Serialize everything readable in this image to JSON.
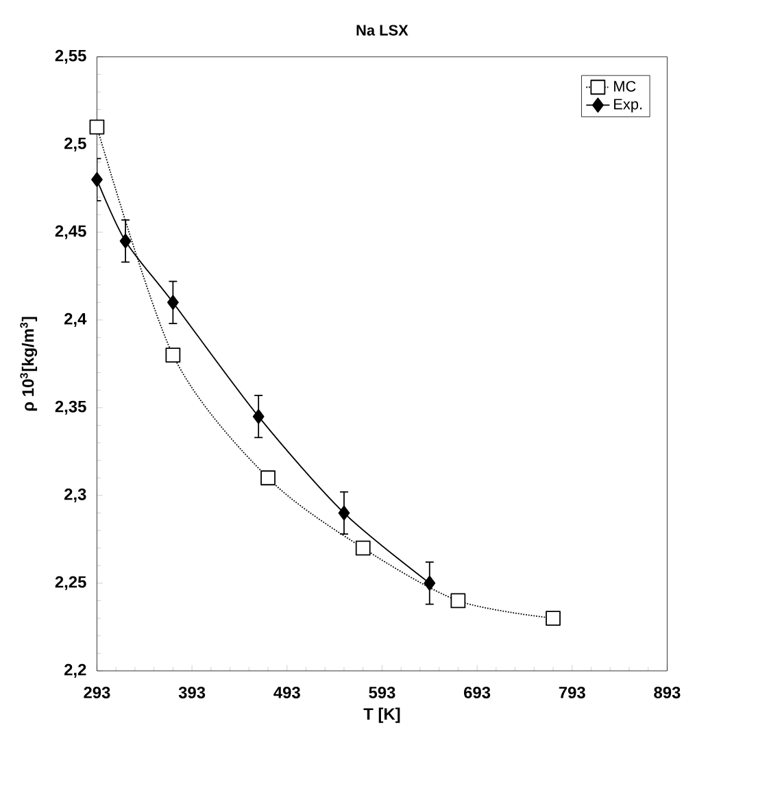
{
  "chart_data": {
    "type": "line",
    "title": "Na LSX",
    "xlabel": "T [K]",
    "ylabel": "ρ 10$^{3}$[kg/m$^{3}$]",
    "xlim": [
      293,
      893
    ],
    "xticks": [
      293,
      393,
      493,
      593,
      693,
      793,
      893
    ],
    "ylim": [
      2.2,
      2.55
    ],
    "yticks": [
      {
        "value": 2.2,
        "label": "2,2"
      },
      {
        "value": 2.25,
        "label": "2,25"
      },
      {
        "value": 2.3,
        "label": "2,3"
      },
      {
        "value": 2.35,
        "label": "2,35"
      },
      {
        "value": 2.4,
        "label": "2,4"
      },
      {
        "value": 2.45,
        "label": "2,45"
      },
      {
        "value": 2.5,
        "label": "2,5"
      },
      {
        "value": 2.55,
        "label": "2,55"
      }
    ],
    "legend": "top right",
    "grid": false,
    "series": [
      {
        "name": "MC",
        "color": "#000000",
        "marker": "square",
        "line_style": "dotted",
        "x": [
          293,
          373,
          473,
          573,
          673,
          773
        ],
        "values": [
          2.51,
          2.38,
          2.31,
          2.27,
          2.24,
          2.23
        ]
      },
      {
        "name": "Exp.",
        "color": "#000000",
        "marker": "diamond",
        "line_style": "solid",
        "x": [
          293,
          323,
          373,
          463,
          553,
          643
        ],
        "values": [
          2.48,
          2.445,
          2.41,
          2.345,
          2.29,
          2.25
        ],
        "errors": [
          0.012,
          0.012,
          0.012,
          0.012,
          0.012,
          0.012
        ]
      }
    ]
  }
}
